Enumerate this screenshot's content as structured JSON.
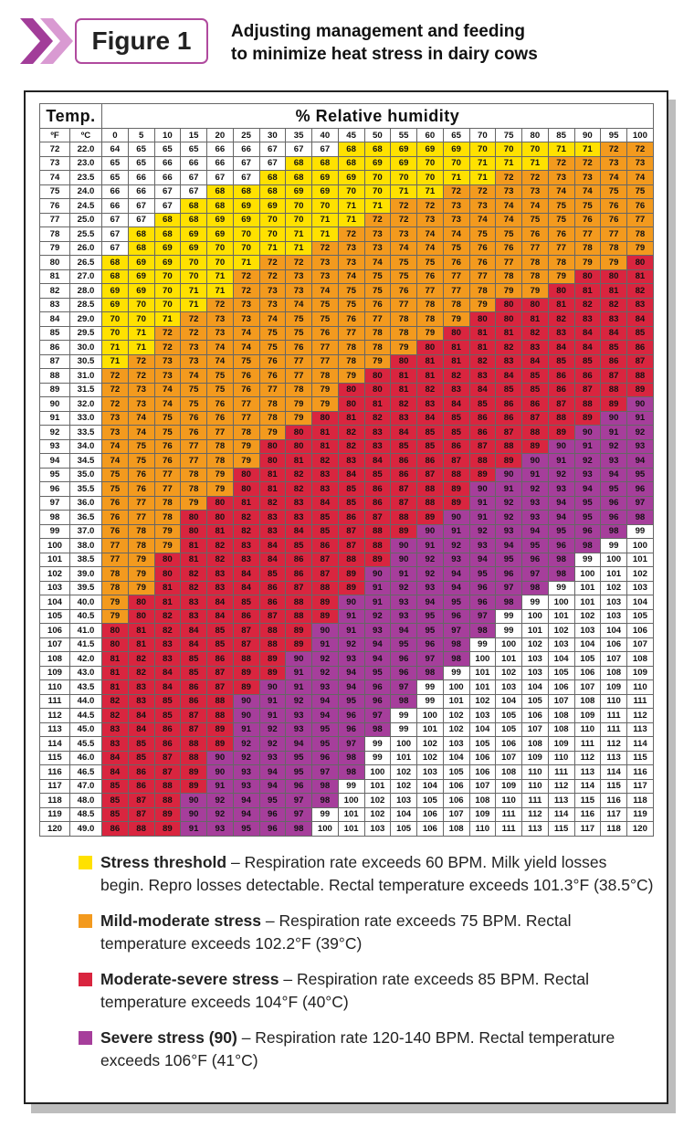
{
  "figure_label": "Figure 1",
  "title_lines": [
    "Adjusting management and feeding",
    "to minimize heat stress in dairy cows"
  ],
  "table": {
    "temp_header": "Temp.",
    "rh_header": "% Relative humidity",
    "unit_f": "ºF",
    "unit_c": "ºC",
    "humidity": [
      0,
      5,
      10,
      15,
      20,
      25,
      30,
      35,
      40,
      45,
      50,
      55,
      60,
      65,
      70,
      75,
      80,
      85,
      90,
      95,
      100
    ],
    "rows": [
      {
        "f": "72",
        "c": "22.0",
        "v": [
          64,
          65,
          65,
          65,
          66,
          66,
          67,
          67,
          67,
          68,
          68,
          69,
          69,
          69,
          70,
          70,
          70,
          71,
          71,
          72,
          72
        ]
      },
      {
        "f": "73",
        "c": "23.0",
        "v": [
          65,
          65,
          66,
          66,
          66,
          67,
          67,
          68,
          68,
          68,
          69,
          69,
          70,
          70,
          71,
          71,
          71,
          72,
          72,
          73,
          73
        ]
      },
      {
        "f": "74",
        "c": "23.5",
        "v": [
          65,
          66,
          66,
          67,
          67,
          67,
          68,
          68,
          69,
          69,
          70,
          70,
          70,
          71,
          71,
          72,
          72,
          73,
          73,
          74,
          74
        ]
      },
      {
        "f": "75",
        "c": "24.0",
        "v": [
          66,
          66,
          67,
          67,
          68,
          68,
          68,
          69,
          69,
          70,
          70,
          71,
          71,
          72,
          72,
          73,
          73,
          74,
          74,
          75,
          75
        ]
      },
      {
        "f": "76",
        "c": "24.5",
        "v": [
          66,
          67,
          67,
          68,
          68,
          69,
          69,
          70,
          70,
          71,
          71,
          72,
          72,
          73,
          73,
          74,
          74,
          75,
          75,
          76,
          76
        ]
      },
      {
        "f": "77",
        "c": "25.0",
        "v": [
          67,
          67,
          68,
          68,
          69,
          69,
          70,
          70,
          71,
          71,
          72,
          72,
          73,
          73,
          74,
          74,
          75,
          75,
          76,
          76,
          77
        ]
      },
      {
        "f": "78",
        "c": "25.5",
        "v": [
          67,
          68,
          68,
          69,
          69,
          70,
          70,
          71,
          71,
          72,
          73,
          73,
          74,
          74,
          75,
          75,
          76,
          76,
          77,
          77,
          78
        ]
      },
      {
        "f": "79",
        "c": "26.0",
        "v": [
          67,
          68,
          69,
          69,
          70,
          70,
          71,
          71,
          72,
          73,
          73,
          74,
          74,
          75,
          76,
          76,
          77,
          77,
          78,
          78,
          79
        ]
      },
      {
        "f": "80",
        "c": "26.5",
        "v": [
          68,
          69,
          69,
          70,
          70,
          71,
          72,
          72,
          73,
          73,
          74,
          75,
          75,
          76,
          76,
          77,
          78,
          78,
          79,
          79,
          80
        ]
      },
      {
        "f": "81",
        "c": "27.0",
        "v": [
          68,
          69,
          70,
          70,
          71,
          72,
          72,
          73,
          73,
          74,
          75,
          75,
          76,
          77,
          77,
          78,
          78,
          79,
          80,
          80,
          81
        ]
      },
      {
        "f": "82",
        "c": "28.0",
        "v": [
          69,
          69,
          70,
          71,
          71,
          72,
          73,
          73,
          74,
          75,
          75,
          76,
          77,
          77,
          78,
          79,
          79,
          80,
          81,
          81,
          82
        ]
      },
      {
        "f": "83",
        "c": "28.5",
        "v": [
          69,
          70,
          70,
          71,
          72,
          73,
          73,
          74,
          75,
          75,
          76,
          77,
          78,
          78,
          79,
          80,
          80,
          81,
          82,
          82,
          83
        ]
      },
      {
        "f": "84",
        "c": "29.0",
        "v": [
          70,
          70,
          71,
          72,
          73,
          73,
          74,
          75,
          75,
          76,
          77,
          78,
          78,
          79,
          80,
          80,
          81,
          82,
          83,
          83,
          84
        ]
      },
      {
        "f": "85",
        "c": "29.5",
        "v": [
          70,
          71,
          72,
          72,
          73,
          74,
          75,
          75,
          76,
          77,
          78,
          78,
          79,
          80,
          81,
          81,
          82,
          83,
          84,
          84,
          85
        ]
      },
      {
        "f": "86",
        "c": "30.0",
        "v": [
          71,
          71,
          72,
          73,
          74,
          74,
          75,
          76,
          77,
          78,
          78,
          79,
          80,
          81,
          81,
          82,
          83,
          84,
          84,
          85,
          86
        ]
      },
      {
        "f": "87",
        "c": "30.5",
        "v": [
          71,
          72,
          73,
          73,
          74,
          75,
          76,
          77,
          77,
          78,
          79,
          80,
          81,
          81,
          82,
          83,
          84,
          85,
          85,
          86,
          87
        ]
      },
      {
        "f": "88",
        "c": "31.0",
        "v": [
          72,
          72,
          73,
          74,
          75,
          76,
          76,
          77,
          78,
          79,
          80,
          81,
          81,
          82,
          83,
          84,
          85,
          86,
          86,
          87,
          88
        ]
      },
      {
        "f": "89",
        "c": "31.5",
        "v": [
          72,
          73,
          74,
          75,
          75,
          76,
          77,
          78,
          79,
          80,
          80,
          81,
          82,
          83,
          84,
          85,
          85,
          86,
          87,
          88,
          89
        ]
      },
      {
        "f": "90",
        "c": "32.0",
        "v": [
          72,
          73,
          74,
          75,
          76,
          77,
          78,
          79,
          79,
          80,
          81,
          82,
          83,
          84,
          85,
          86,
          86,
          87,
          88,
          89,
          90
        ]
      },
      {
        "f": "91",
        "c": "33.0",
        "v": [
          73,
          74,
          75,
          76,
          76,
          77,
          78,
          79,
          80,
          81,
          82,
          83,
          84,
          85,
          86,
          86,
          87,
          88,
          89,
          90,
          91
        ]
      },
      {
        "f": "92",
        "c": "33.5",
        "v": [
          73,
          74,
          75,
          76,
          77,
          78,
          79,
          80,
          81,
          82,
          83,
          84,
          85,
          85,
          86,
          87,
          88,
          89,
          90,
          91,
          92
        ]
      },
      {
        "f": "93",
        "c": "34.0",
        "v": [
          74,
          75,
          76,
          77,
          78,
          79,
          80,
          80,
          81,
          82,
          83,
          85,
          85,
          86,
          87,
          88,
          89,
          90,
          91,
          92,
          93
        ]
      },
      {
        "f": "94",
        "c": "34.5",
        "v": [
          74,
          75,
          76,
          77,
          78,
          79,
          80,
          81,
          82,
          83,
          84,
          86,
          86,
          87,
          88,
          89,
          90,
          91,
          92,
          93,
          94
        ]
      },
      {
        "f": "95",
        "c": "35.0",
        "v": [
          75,
          76,
          77,
          78,
          79,
          80,
          81,
          82,
          83,
          84,
          85,
          86,
          87,
          88,
          89,
          90,
          91,
          92,
          93,
          94,
          95
        ]
      },
      {
        "f": "96",
        "c": "35.5",
        "v": [
          75,
          76,
          77,
          78,
          79,
          80,
          81,
          82,
          83,
          85,
          86,
          87,
          88,
          89,
          90,
          91,
          92,
          93,
          94,
          95,
          96
        ]
      },
      {
        "f": "97",
        "c": "36.0",
        "v": [
          76,
          77,
          78,
          79,
          80,
          81,
          82,
          83,
          84,
          85,
          86,
          87,
          88,
          89,
          91,
          92,
          93,
          94,
          95,
          96,
          97
        ]
      },
      {
        "f": "98",
        "c": "36.5",
        "v": [
          76,
          77,
          78,
          80,
          80,
          82,
          83,
          83,
          85,
          86,
          87,
          88,
          89,
          90,
          91,
          92,
          93,
          94,
          95,
          96,
          98
        ]
      },
      {
        "f": "99",
        "c": "37.0",
        "v": [
          76,
          78,
          79,
          80,
          81,
          82,
          83,
          84,
          85,
          87,
          88,
          89,
          90,
          91,
          92,
          93,
          94,
          95,
          96,
          98,
          99
        ]
      },
      {
        "f": "100",
        "c": "38.0",
        "v": [
          77,
          78,
          79,
          81,
          82,
          83,
          84,
          85,
          86,
          87,
          88,
          90,
          91,
          92,
          93,
          94,
          95,
          96,
          98,
          99,
          100
        ]
      },
      {
        "f": "101",
        "c": "38.5",
        "v": [
          77,
          79,
          80,
          81,
          82,
          83,
          84,
          86,
          87,
          88,
          89,
          90,
          92,
          93,
          94,
          95,
          96,
          98,
          99,
          100,
          101
        ]
      },
      {
        "f": "102",
        "c": "39.0",
        "v": [
          78,
          79,
          80,
          82,
          83,
          84,
          85,
          86,
          87,
          89,
          90,
          91,
          92,
          94,
          95,
          96,
          97,
          98,
          100,
          101,
          102
        ]
      },
      {
        "f": "103",
        "c": "39.5",
        "v": [
          78,
          79,
          81,
          82,
          83,
          84,
          86,
          87,
          88,
          89,
          91,
          92,
          93,
          94,
          96,
          97,
          98,
          99,
          101,
          102,
          103
        ]
      },
      {
        "f": "104",
        "c": "40.0",
        "v": [
          79,
          80,
          81,
          83,
          84,
          85,
          86,
          88,
          89,
          90,
          91,
          93,
          94,
          95,
          96,
          98,
          99,
          100,
          101,
          103,
          104
        ]
      },
      {
        "f": "105",
        "c": "40.5",
        "v": [
          79,
          80,
          82,
          83,
          84,
          86,
          87,
          88,
          89,
          91,
          92,
          93,
          95,
          96,
          97,
          99,
          100,
          101,
          102,
          103,
          105
        ]
      },
      {
        "f": "106",
        "c": "41.0",
        "v": [
          80,
          81,
          82,
          84,
          85,
          87,
          88,
          89,
          90,
          91,
          93,
          94,
          95,
          97,
          98,
          99,
          101,
          102,
          103,
          104,
          106
        ]
      },
      {
        "f": "107",
        "c": "41.5",
        "v": [
          80,
          81,
          83,
          84,
          85,
          87,
          88,
          89,
          91,
          92,
          94,
          95,
          96,
          98,
          99,
          100,
          102,
          103,
          104,
          106,
          107
        ]
      },
      {
        "f": "108",
        "c": "42.0",
        "v": [
          81,
          82,
          83,
          85,
          86,
          88,
          89,
          90,
          92,
          93,
          94,
          96,
          97,
          98,
          100,
          101,
          103,
          104,
          105,
          107,
          108
        ]
      },
      {
        "f": "109",
        "c": "43.0",
        "v": [
          81,
          82,
          84,
          85,
          87,
          89,
          89,
          91,
          92,
          94,
          95,
          96,
          98,
          99,
          101,
          102,
          103,
          105,
          106,
          108,
          109
        ]
      },
      {
        "f": "110",
        "c": "43.5",
        "v": [
          81,
          83,
          84,
          86,
          87,
          89,
          90,
          91,
          93,
          94,
          96,
          97,
          99,
          100,
          101,
          103,
          104,
          106,
          107,
          109,
          110
        ]
      },
      {
        "f": "111",
        "c": "44.0",
        "v": [
          82,
          83,
          85,
          86,
          88,
          90,
          91,
          92,
          94,
          95,
          96,
          98,
          99,
          101,
          102,
          104,
          105,
          107,
          108,
          110,
          111
        ]
      },
      {
        "f": "112",
        "c": "44.5",
        "v": [
          82,
          84,
          85,
          87,
          88,
          90,
          91,
          93,
          94,
          96,
          97,
          99,
          100,
          102,
          103,
          105,
          106,
          108,
          109,
          111,
          112
        ]
      },
      {
        "f": "113",
        "c": "45.0",
        "v": [
          83,
          84,
          86,
          87,
          89,
          91,
          92,
          93,
          95,
          96,
          98,
          99,
          101,
          102,
          104,
          105,
          107,
          108,
          110,
          111,
          113
        ]
      },
      {
        "f": "114",
        "c": "45.5",
        "v": [
          83,
          85,
          86,
          88,
          89,
          92,
          92,
          94,
          95,
          97,
          99,
          100,
          102,
          103,
          105,
          106,
          108,
          109,
          111,
          112,
          114
        ]
      },
      {
        "f": "115",
        "c": "46.0",
        "v": [
          84,
          85,
          87,
          88,
          90,
          92,
          93,
          95,
          96,
          98,
          99,
          101,
          102,
          104,
          106,
          107,
          109,
          110,
          112,
          113,
          115
        ]
      },
      {
        "f": "116",
        "c": "46.5",
        "v": [
          84,
          86,
          87,
          89,
          90,
          93,
          94,
          95,
          97,
          98,
          100,
          102,
          103,
          105,
          106,
          108,
          110,
          111,
          113,
          114,
          116
        ]
      },
      {
        "f": "117",
        "c": "47.0",
        "v": [
          85,
          86,
          88,
          89,
          91,
          93,
          94,
          96,
          98,
          99,
          101,
          102,
          104,
          106,
          107,
          109,
          110,
          112,
          114,
          115,
          117
        ]
      },
      {
        "f": "118",
        "c": "48.0",
        "v": [
          85,
          87,
          88,
          90,
          92,
          94,
          95,
          97,
          98,
          100,
          102,
          103,
          105,
          106,
          108,
          110,
          111,
          113,
          115,
          116,
          118
        ]
      },
      {
        "f": "119",
        "c": "48.5",
        "v": [
          85,
          87,
          89,
          90,
          92,
          94,
          96,
          97,
          99,
          101,
          102,
          104,
          106,
          107,
          109,
          111,
          112,
          114,
          116,
          117,
          119
        ]
      },
      {
        "f": "120",
        "c": "49.0",
        "v": [
          86,
          88,
          89,
          91,
          93,
          95,
          96,
          98,
          100,
          101,
          103,
          105,
          106,
          108,
          110,
          111,
          113,
          115,
          117,
          118,
          120
        ]
      }
    ]
  },
  "legend": [
    {
      "color": "#ffe100",
      "term": "Stress threshold",
      "text": " – Respiration rate exceeds 60 BPM. Milk yield losses begin. Repro losses detectable. Rectal temperature exceeds 101.3°F (38.5°C)"
    },
    {
      "color": "#f39a1e",
      "term": "Mild-moderate stress",
      "text": " – Respiration rate exceeds 75 BPM. Rectal temperature exceeds 102.2°F (39°C)"
    },
    {
      "color": "#d9253f",
      "term": "Moderate-severe stress",
      "text": " – Respiration rate exceeds 85 BPM. Rectal temperature exceeds 104°F (40°C)"
    },
    {
      "color": "#a63e9b",
      "term": "Severe stress (90)",
      "text": " – Respiration rate 120-140 BPM. Rectal temperature exceeds 106°F (41°C)"
    }
  ],
  "colors": {
    "threshold": "#ffe100",
    "mild": "#f39a1e",
    "moderate": "#d9253f",
    "severe": "#a63e9b",
    "none": "#ffffff"
  }
}
